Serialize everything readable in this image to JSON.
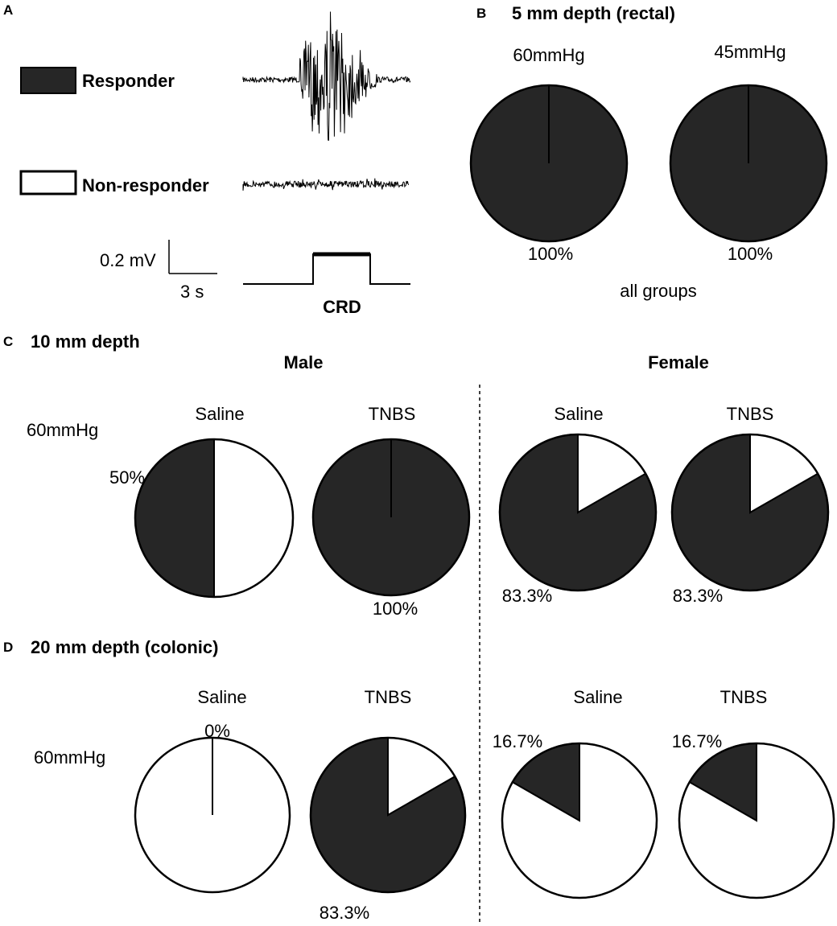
{
  "colors": {
    "responder": "#262626",
    "non_responder": "#ffffff",
    "stroke": "#000000"
  },
  "panel_a": {
    "letter": "A",
    "legend": [
      {
        "label": "Responder",
        "color": "#262626"
      },
      {
        "label": "Non-responder",
        "color": "#ffffff"
      }
    ],
    "scale_voltage": "0.2 mV",
    "scale_time": "3 s",
    "stimulus_label": "CRD"
  },
  "panel_b": {
    "letter": "B",
    "title": "5 mm depth (rectal)",
    "footer": "all groups"
  },
  "panel_c": {
    "letter": "C",
    "title": "10 mm depth",
    "row_label": "60mmHg",
    "sex_labels": [
      "Male",
      "Female"
    ]
  },
  "panel_d": {
    "letter": "D",
    "title": "20 mm depth (colonic)",
    "row_label": "60mmHg"
  },
  "chart_data": [
    {
      "type": "pie",
      "panel": "B",
      "title": "5 mm depth (rectal)",
      "legend": [
        "Responder",
        "Non-responder"
      ],
      "charts": [
        {
          "title": "60mmHg",
          "responder_percent": 100,
          "value_label": "100%"
        },
        {
          "title": "45mmHg",
          "responder_percent": 100,
          "value_label": "100%"
        }
      ]
    },
    {
      "type": "pie",
      "panel": "C",
      "title": "10 mm depth",
      "legend": [
        "Responder",
        "Non-responder"
      ],
      "charts": [
        {
          "group": "Male",
          "title": "Saline",
          "responder_percent": 50,
          "value_label": "50%"
        },
        {
          "group": "Male",
          "title": "TNBS",
          "responder_percent": 100,
          "value_label": "100%"
        },
        {
          "group": "Female",
          "title": "Saline",
          "responder_percent": 83.3,
          "value_label": "83.3%"
        },
        {
          "group": "Female",
          "title": "TNBS",
          "responder_percent": 83.3,
          "value_label": "83.3%"
        }
      ]
    },
    {
      "type": "pie",
      "panel": "D",
      "title": "20 mm depth (colonic)",
      "legend": [
        "Responder",
        "Non-responder"
      ],
      "charts": [
        {
          "group": "Male",
          "title": "Saline",
          "responder_percent": 0,
          "value_label": "0%"
        },
        {
          "group": "Male",
          "title": "TNBS",
          "responder_percent": 83.3,
          "value_label": "83.3%"
        },
        {
          "group": "Female",
          "title": "Saline",
          "responder_percent": 16.7,
          "value_label": "16.7%"
        },
        {
          "group": "Female",
          "title": "TNBS",
          "responder_percent": 16.7,
          "value_label": "16.7%"
        }
      ]
    }
  ]
}
